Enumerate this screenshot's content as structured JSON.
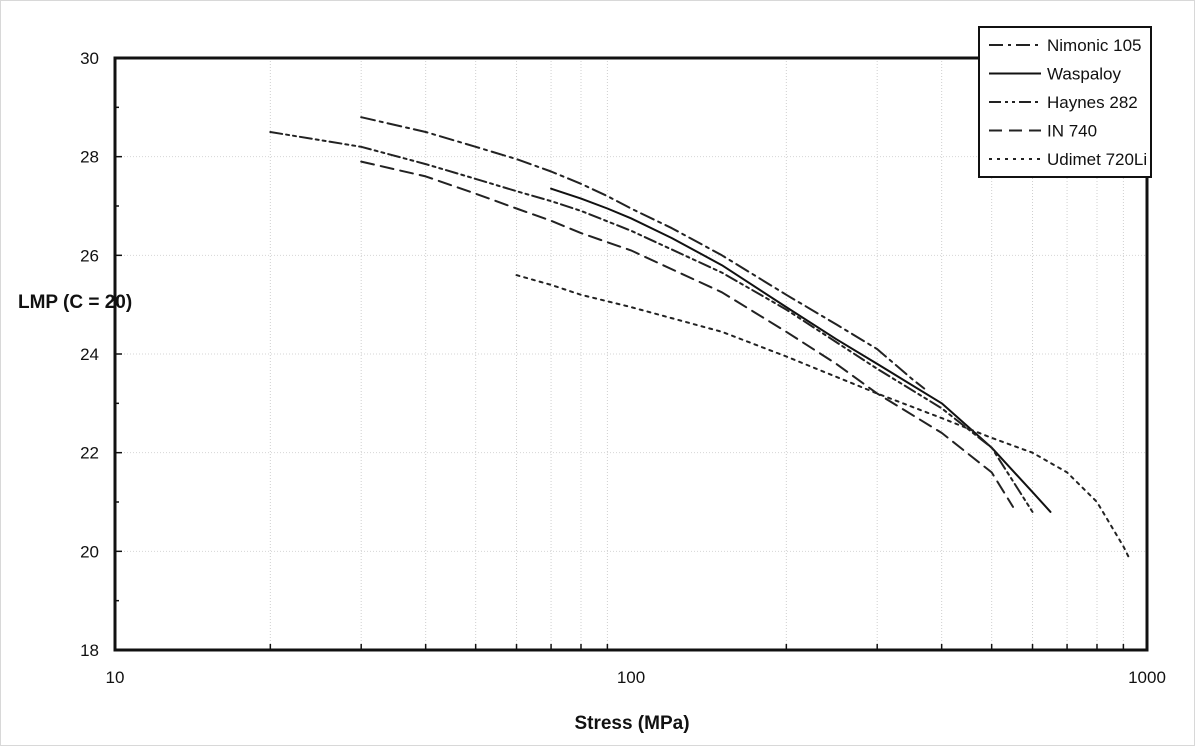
{
  "chart_data": {
    "type": "line",
    "title": "",
    "xlabel": "Stress (MPa)",
    "ylabel": "LMP (C = 20)",
    "xscale": "log",
    "xlim": [
      10,
      1000
    ],
    "ylim": [
      18,
      30
    ],
    "xticks": [
      10,
      100,
      1000
    ],
    "xtick_labels": [
      "10",
      "100",
      "1000"
    ],
    "yticks": [
      18,
      20,
      22,
      24,
      26,
      28,
      30
    ],
    "ytick_labels": [
      "18",
      "20",
      "22",
      "24",
      "26",
      "28",
      "30"
    ],
    "grid": true,
    "legend": "top-right",
    "series": [
      {
        "name": "Nimonic 105",
        "style": "dash-dot",
        "color": "#222222",
        "x": [
          30,
          40,
          50,
          60,
          70,
          80,
          90,
          100,
          120,
          150,
          200,
          250,
          300,
          350,
          370
        ],
        "y": [
          28.8,
          28.5,
          28.2,
          27.95,
          27.7,
          27.45,
          27.2,
          26.95,
          26.55,
          26.0,
          25.2,
          24.6,
          24.1,
          23.5,
          23.3
        ]
      },
      {
        "name": "Waspaloy",
        "style": "solid",
        "color": "#111111",
        "x": [
          70,
          80,
          90,
          100,
          120,
          150,
          200,
          250,
          300,
          400,
          500,
          600,
          650
        ],
        "y": [
          27.35,
          27.15,
          26.95,
          26.75,
          26.35,
          25.8,
          24.95,
          24.3,
          23.8,
          23.0,
          22.1,
          21.2,
          20.8
        ]
      },
      {
        "name": "Haynes 282",
        "style": "dash-dot-dot",
        "color": "#222222",
        "x": [
          20,
          30,
          40,
          50,
          60,
          70,
          80,
          100,
          150,
          200,
          300,
          400,
          500,
          600
        ],
        "y": [
          28.5,
          28.2,
          27.85,
          27.55,
          27.3,
          27.1,
          26.9,
          26.5,
          25.65,
          24.9,
          23.7,
          22.9,
          22.1,
          20.8
        ]
      },
      {
        "name": "IN 740",
        "style": "dash",
        "color": "#222222",
        "x": [
          30,
          40,
          50,
          60,
          70,
          80,
          100,
          150,
          200,
          250,
          300,
          400,
          500,
          550
        ],
        "y": [
          27.9,
          27.6,
          27.25,
          26.95,
          26.7,
          26.45,
          26.1,
          25.25,
          24.45,
          23.8,
          23.2,
          22.4,
          21.6,
          20.9
        ]
      },
      {
        "name": "Udimet 720Li",
        "style": "dotted",
        "color": "#222222",
        "x": [
          60,
          70,
          80,
          100,
          150,
          200,
          300,
          400,
          500,
          600,
          700,
          800,
          900,
          920
        ],
        "y": [
          25.6,
          25.4,
          25.2,
          24.95,
          24.45,
          23.95,
          23.2,
          22.7,
          22.3,
          22.0,
          21.6,
          21.0,
          20.1,
          19.9
        ]
      }
    ]
  }
}
